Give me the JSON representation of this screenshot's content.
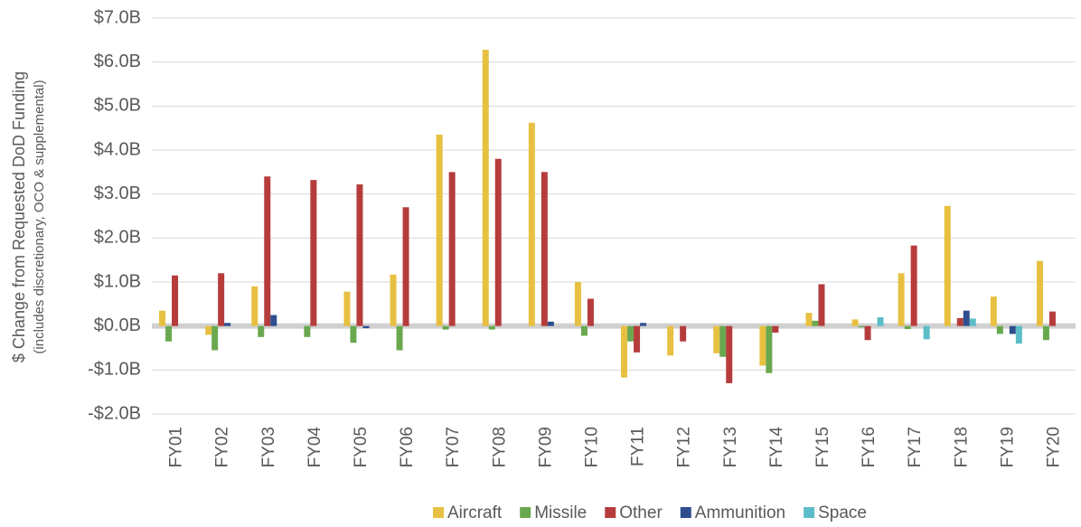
{
  "chart_data": {
    "type": "bar",
    "y_label": "$ Change from Requested DoD Funding",
    "y_sublabel": "(includes discretionary, OCO & supplemental)",
    "categories": [
      "FY01",
      "FY02",
      "FY03",
      "FY04",
      "FY05",
      "FY06",
      "FY07",
      "FY08",
      "FY09",
      "FY10",
      "FY11",
      "FY12",
      "FY13",
      "FY14",
      "FY15",
      "FY16",
      "FY17",
      "FY18",
      "FY19",
      "FY20"
    ],
    "series": [
      {
        "name": "Aircraft",
        "color": "#e8c041",
        "values": [
          0.35,
          -0.2,
          0.9,
          0,
          0.78,
          1.17,
          4.35,
          6.28,
          4.62,
          1.0,
          -1.17,
          -0.67,
          -0.62,
          -0.9,
          0.3,
          0.15,
          1.2,
          2.73,
          0.67,
          1.48
        ]
      },
      {
        "name": "Missile",
        "color": "#6aa84f",
        "values": [
          -0.35,
          -0.55,
          -0.25,
          -0.25,
          -0.38,
          -0.55,
          -0.08,
          -0.08,
          0,
          -0.22,
          -0.35,
          0,
          -0.7,
          -1.07,
          0.12,
          -0.03,
          -0.07,
          0,
          -0.18,
          -0.32
        ]
      },
      {
        "name": "Other",
        "color": "#b63c3c",
        "values": [
          1.15,
          1.2,
          3.4,
          3.32,
          3.22,
          2.7,
          3.5,
          3.8,
          3.5,
          0.62,
          -0.6,
          -0.35,
          -1.3,
          -0.15,
          0.95,
          -0.32,
          1.83,
          0.18,
          0,
          0.33
        ]
      },
      {
        "name": "Ammunition",
        "color": "#2e4e8f",
        "values": [
          0,
          0.07,
          0.25,
          0,
          -0.05,
          0,
          0,
          0,
          0.1,
          0,
          0.07,
          0,
          0,
          0,
          0,
          0,
          0,
          0.35,
          -0.18,
          0
        ]
      },
      {
        "name": "Space",
        "color": "#5bbdc8",
        "values": [
          0,
          0,
          0,
          0,
          0,
          0,
          0,
          0,
          0,
          0,
          0,
          0,
          0,
          0,
          0,
          0.2,
          -0.3,
          0.17,
          -0.4,
          0
        ]
      }
    ],
    "ylim": [
      -2,
      7
    ],
    "yticks": [
      {
        "value": -2,
        "label": "-$2.0B"
      },
      {
        "value": -1,
        "label": "-$1.0B"
      },
      {
        "value": 0,
        "label": "$0.0B"
      },
      {
        "value": 1,
        "label": "$1.0B"
      },
      {
        "value": 2,
        "label": "$2.0B"
      },
      {
        "value": 3,
        "label": "$3.0B"
      },
      {
        "value": 4,
        "label": "$4.0B"
      },
      {
        "value": 5,
        "label": "$5.0B"
      },
      {
        "value": 6,
        "label": "$6.0B"
      },
      {
        "value": 7,
        "label": "$7.0B"
      }
    ],
    "grid": true,
    "legend": "bottom"
  }
}
